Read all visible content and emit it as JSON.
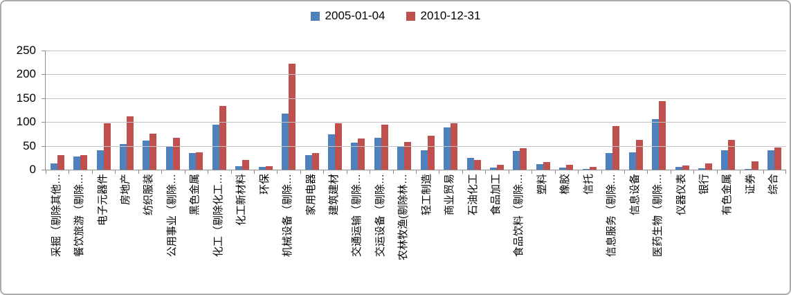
{
  "legend": {
    "series1_label": "2005-01-04",
    "series2_label": "2010-12-31"
  },
  "colors": {
    "series1": "#4f81bd",
    "series2": "#c0504d",
    "gridline": "#c3c3c3",
    "axis": "#8c8c8c"
  },
  "chart_data": {
    "type": "bar",
    "title": "",
    "xlabel": "",
    "ylabel": "",
    "ylim": [
      0,
      250
    ],
    "yticks": [
      0,
      50,
      100,
      150,
      200,
      250
    ],
    "grid": true,
    "legend_position": "top-center",
    "categories": [
      "采掘（剔除其他…",
      "餐饮旅游（剔除…",
      "电子元器件",
      "房地产",
      "纺织服装",
      "公用事业（剔除…",
      "黑色金属",
      "化工（剔除化工…",
      "化工新材料",
      "环保",
      "机械设备（剔除…",
      "家用电器",
      "建筑建材",
      "交通运输（剔除…",
      "交运设备（剔除…",
      "农林牧渔(剔除林…",
      "轻工制造",
      "商业贸易",
      "石油化工",
      "食品加工",
      "食品饮料（剔除…",
      "塑料",
      "橡胶",
      "信托",
      "信息服务（剔除…",
      "信息设备",
      "医药生物（剔除…",
      "仪器仪表",
      "银行",
      "有色金属",
      "证券",
      "综合"
    ],
    "series": [
      {
        "name": "2005-01-04",
        "color": "#4f81bd",
        "values": [
          13,
          28,
          41,
          54,
          61,
          49,
          35,
          95,
          7,
          6,
          118,
          31,
          74,
          56,
          67,
          50,
          41,
          89,
          25,
          4,
          39,
          11,
          5,
          2,
          35,
          37,
          106,
          6,
          3,
          41,
          2,
          41
        ]
      },
      {
        "name": "2010-12-31",
        "color": "#c0504d",
        "values": [
          30,
          31,
          97,
          112,
          76,
          67,
          37,
          134,
          21,
          7,
          222,
          35,
          97,
          65,
          95,
          58,
          71,
          97,
          20,
          10,
          45,
          16,
          10,
          6,
          92,
          62,
          144,
          8,
          13,
          63,
          18,
          47
        ]
      }
    ]
  }
}
